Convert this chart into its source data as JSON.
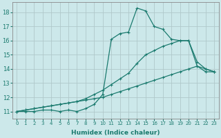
{
  "xlabel": "Humidex (Indice chaleur)",
  "background_color": "#cce8ea",
  "grid_color": "#b0c8ca",
  "line_color": "#1a7a6e",
  "xlim": [
    -0.5,
    23.5
  ],
  "ylim": [
    10.5,
    18.7
  ],
  "x_ticks": [
    0,
    1,
    2,
    3,
    4,
    5,
    6,
    7,
    8,
    9,
    10,
    11,
    12,
    13,
    14,
    15,
    16,
    17,
    18,
    19,
    20,
    21,
    22,
    23
  ],
  "y_ticks": [
    11,
    12,
    13,
    14,
    15,
    16,
    17,
    18
  ],
  "line_main": [
    11.0,
    11.0,
    11.0,
    11.1,
    11.1,
    11.0,
    11.1,
    11.0,
    11.2,
    11.5,
    12.2,
    16.1,
    16.5,
    16.6,
    18.3,
    18.1,
    17.0,
    16.8,
    16.1,
    16.0,
    16.0,
    14.2,
    14.0,
    13.8
  ],
  "line_upper": [
    11.0,
    11.1,
    11.2,
    11.3,
    11.4,
    11.5,
    11.6,
    11.7,
    11.9,
    12.2,
    12.5,
    12.9,
    13.3,
    13.7,
    14.4,
    15.0,
    15.3,
    15.6,
    15.8,
    16.0,
    16.0,
    14.5,
    14.0,
    13.8
  ],
  "line_lower": [
    11.0,
    11.1,
    11.2,
    11.3,
    11.4,
    11.5,
    11.6,
    11.7,
    11.8,
    11.9,
    12.0,
    12.2,
    12.4,
    12.6,
    12.8,
    13.0,
    13.2,
    13.4,
    13.6,
    13.8,
    14.0,
    14.2,
    13.8,
    13.8
  ]
}
